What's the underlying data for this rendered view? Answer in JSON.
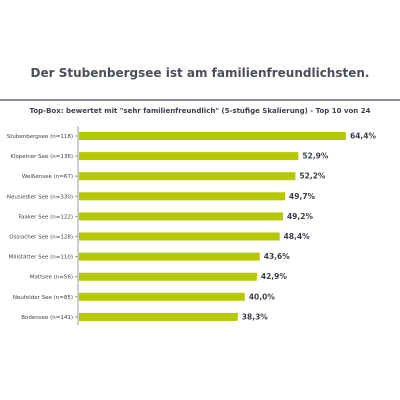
{
  "header": {
    "title": "Der Stubenbergsee ist am familienfreundlichsten."
  },
  "chart_data": {
    "type": "bar",
    "orientation": "horizontal",
    "title": "Top-Box: bewertet mit \"sehr familienfreundlich\" (5-stufige Skalierung) - Top 10 von 24",
    "categories": [
      "Stubenbergsee (n=118)",
      "Klopeiner See (n=136)",
      "Weißensee (n=67)",
      "Neusiedler See (n=330)",
      "Faaker See (n=122)",
      "Ossiacher See (n=128)",
      "Millstätter See (n=110)",
      "Mattsee (n=56)",
      "Neufelder See (n=85)",
      "Bodensee (n=141)"
    ],
    "values": [
      64.4,
      52.9,
      52.2,
      49.7,
      49.2,
      48.4,
      43.6,
      42.9,
      40.0,
      38.3
    ],
    "value_labels": [
      "64,4%",
      "52,9%",
      "52,2%",
      "49,7%",
      "49,2%",
      "48,4%",
      "43,6%",
      "42,9%",
      "40,0%",
      "38,3%"
    ],
    "xlim": [
      0,
      64.4
    ],
    "grid": false,
    "legend": "none",
    "bar_color": "#b5c800",
    "axis_color": "#9a9da4"
  }
}
